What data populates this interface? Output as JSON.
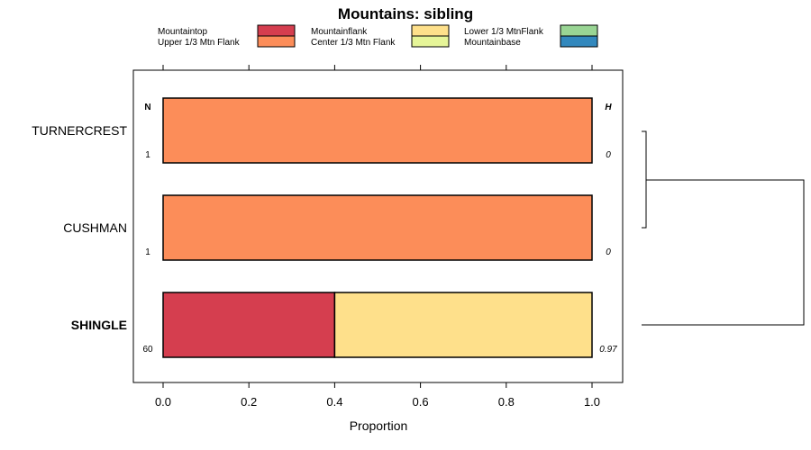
{
  "chart_data": {
    "type": "bar",
    "orientation": "horizontal",
    "stacked": true,
    "title": "Mountains: sibling",
    "xlabel": "Proportion",
    "ylabel": "",
    "xlim": [
      -0.07,
      1.07
    ],
    "xticks": [
      0.0,
      0.2,
      0.4,
      0.6,
      0.8,
      1.0
    ],
    "xtick_labels": [
      "0.0",
      "0.2",
      "0.4",
      "0.6",
      "0.8",
      "1.0"
    ],
    "legend_position": "top",
    "legend": [
      {
        "name": "Mountaintop",
        "color": "#d53e4f"
      },
      {
        "name": "Upper 1/3 Mtn Flank",
        "color": "#fc8d59"
      },
      {
        "name": "Mountainflank",
        "color": "#fee08b"
      },
      {
        "name": "Center 1/3 Mtn Flank",
        "color": "#e6f598"
      },
      {
        "name": "Lower 1/3 MtnFlank",
        "color": "#99d594"
      },
      {
        "name": "Mountainbase",
        "color": "#3288bd"
      }
    ],
    "n_header": "N",
    "h_header": "H",
    "categories": [
      {
        "name": "TURNERCREST",
        "bold": false,
        "n": "1",
        "h": "0",
        "segments": [
          {
            "series": "Upper 1/3 Mtn Flank",
            "value": 1.0
          }
        ]
      },
      {
        "name": "CUSHMAN",
        "bold": false,
        "n": "1",
        "h": "0",
        "segments": [
          {
            "series": "Upper 1/3 Mtn Flank",
            "value": 1.0
          }
        ]
      },
      {
        "name": "SHINGLE",
        "bold": true,
        "n": "60",
        "h": "0.97",
        "segments": [
          {
            "series": "Mountaintop",
            "value": 0.4
          },
          {
            "series": "Mountainflank",
            "value": 0.6
          }
        ]
      }
    ],
    "dendrogram": {
      "merges": [
        {
          "left": "TURNERCREST",
          "right": "CUSHMAN"
        },
        {
          "left": "TURNERCREST+CUSHMAN",
          "right": "SHINGLE"
        }
      ]
    }
  }
}
